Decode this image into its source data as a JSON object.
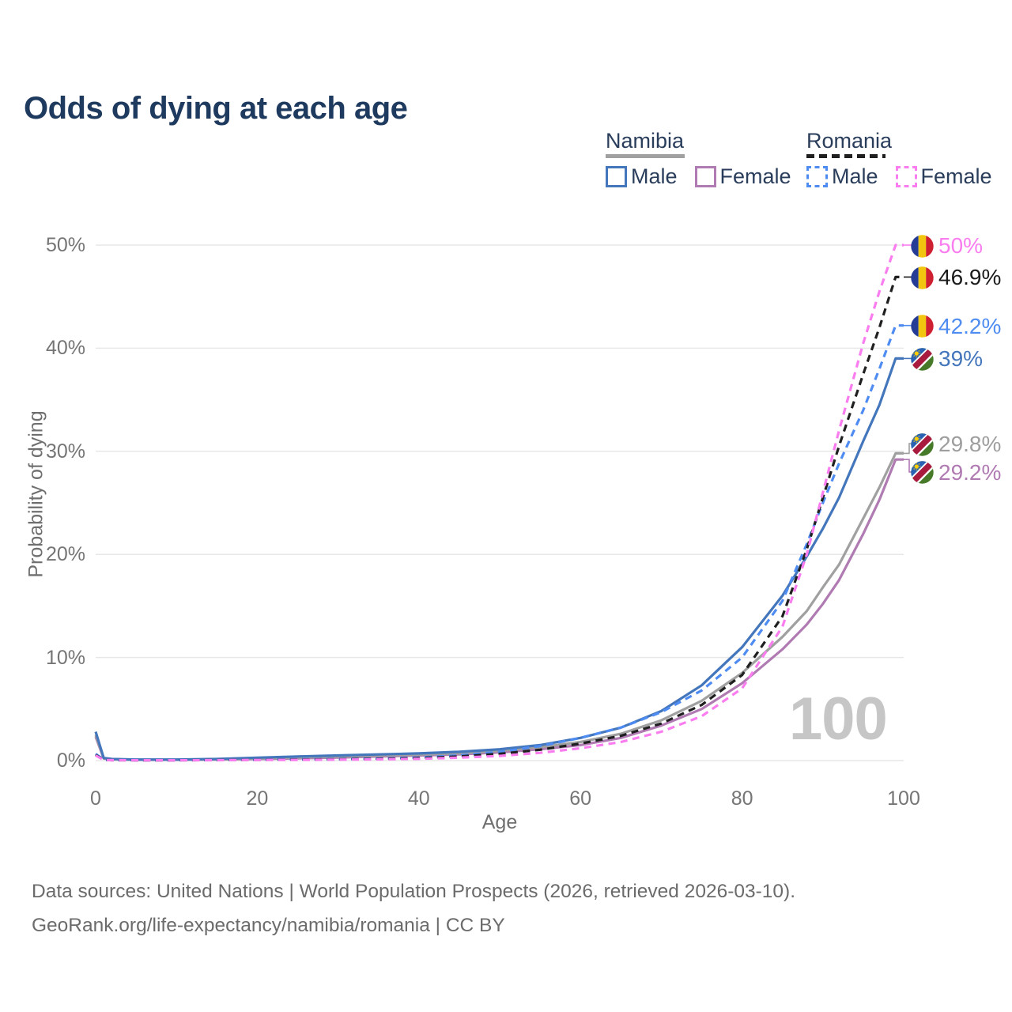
{
  "title": "Odds of dying at each age",
  "watermark": "100",
  "colors": {
    "background": "#FFFFFF",
    "title_text": "#1E3A5E",
    "legend_text": "#2A3E5C",
    "axis_text": "#757575",
    "footer_text": "#6B6B6B",
    "watermark_text": "#C6C6C6",
    "grid": "#E7E7E7"
  },
  "legend": {
    "groups": [
      {
        "country": "Namibia",
        "style": "solid",
        "underline_color": "#A0A0A0",
        "items": [
          {
            "label": "Male",
            "color": "#4476BB",
            "dashed": false
          },
          {
            "label": "Female",
            "color": "#B07AB2",
            "dashed": false
          }
        ]
      },
      {
        "country": "Romania",
        "style": "dashed",
        "underline_color": "#1F1F1F",
        "items": [
          {
            "label": "Male",
            "color": "#4E8CF2",
            "dashed": true
          },
          {
            "label": "Female",
            "color": "#FA7DF0",
            "dashed": true
          }
        ]
      }
    ]
  },
  "flags": {
    "ro": {
      "colors": [
        "#253C96",
        "#F2C50F",
        "#CE2031"
      ]
    },
    "na": {
      "blue": "#2B63B4",
      "red": "#A81B3E",
      "green": "#467A28",
      "white": "#FFFFFF",
      "sun": "#FFCE00"
    }
  },
  "chart_data": {
    "type": "line",
    "title": "Odds of dying at each age",
    "xlabel": "Age",
    "ylabel": "Probability of dying",
    "xlim": [
      0,
      100
    ],
    "ylim": [
      0,
      50
    ],
    "xticks": [
      0,
      20,
      40,
      60,
      80,
      100
    ],
    "yticks": [
      0,
      10,
      20,
      30,
      40,
      50
    ],
    "ytick_suffix": "%",
    "grid": true,
    "legend_position": "top-right",
    "series": [
      {
        "id": "namibia-female",
        "name": "Namibia Female",
        "country": "Namibia",
        "color": "#B07AB2",
        "dashed": false,
        "points": [
          [
            0,
            2.3
          ],
          [
            1,
            0.2
          ],
          [
            2,
            0.12
          ],
          [
            5,
            0.08
          ],
          [
            10,
            0.08
          ],
          [
            15,
            0.1
          ],
          [
            20,
            0.15
          ],
          [
            25,
            0.22
          ],
          [
            30,
            0.3
          ],
          [
            35,
            0.4
          ],
          [
            40,
            0.5
          ],
          [
            45,
            0.6
          ],
          [
            50,
            0.8
          ],
          [
            55,
            1.1
          ],
          [
            60,
            1.5
          ],
          [
            65,
            2.2
          ],
          [
            70,
            3.4
          ],
          [
            75,
            5.0
          ],
          [
            80,
            7.5
          ],
          [
            85,
            10.8
          ],
          [
            88,
            13.2
          ],
          [
            90,
            15.2
          ],
          [
            92,
            17.5
          ],
          [
            95,
            22.0
          ],
          [
            97,
            25.3
          ],
          [
            99,
            29.2
          ],
          [
            100,
            29.2
          ]
        ]
      },
      {
        "id": "namibia-total",
        "name": "Namibia (both sexes)",
        "country": "Namibia",
        "color": "#A0A0A0",
        "dashed": false,
        "points": [
          [
            0,
            2.5
          ],
          [
            1,
            0.22
          ],
          [
            2,
            0.13
          ],
          [
            5,
            0.09
          ],
          [
            10,
            0.09
          ],
          [
            15,
            0.12
          ],
          [
            20,
            0.2
          ],
          [
            25,
            0.3
          ],
          [
            30,
            0.4
          ],
          [
            35,
            0.5
          ],
          [
            40,
            0.58
          ],
          [
            45,
            0.7
          ],
          [
            50,
            0.95
          ],
          [
            55,
            1.3
          ],
          [
            60,
            1.8
          ],
          [
            65,
            2.6
          ],
          [
            70,
            3.9
          ],
          [
            75,
            5.8
          ],
          [
            80,
            8.5
          ],
          [
            85,
            12.0
          ],
          [
            88,
            14.5
          ],
          [
            90,
            16.8
          ],
          [
            92,
            19.0
          ],
          [
            95,
            23.5
          ],
          [
            97,
            26.5
          ],
          [
            99,
            29.8
          ],
          [
            100,
            29.8
          ]
        ]
      },
      {
        "id": "namibia-male",
        "name": "Namibia Male",
        "country": "Namibia",
        "color": "#4476BB",
        "dashed": false,
        "points": [
          [
            0,
            2.8
          ],
          [
            1,
            0.25
          ],
          [
            2,
            0.15
          ],
          [
            5,
            0.1
          ],
          [
            10,
            0.1
          ],
          [
            15,
            0.15
          ],
          [
            20,
            0.28
          ],
          [
            25,
            0.4
          ],
          [
            30,
            0.5
          ],
          [
            35,
            0.6
          ],
          [
            40,
            0.7
          ],
          [
            45,
            0.85
          ],
          [
            50,
            1.1
          ],
          [
            55,
            1.5
          ],
          [
            60,
            2.2
          ],
          [
            65,
            3.2
          ],
          [
            70,
            4.8
          ],
          [
            75,
            7.3
          ],
          [
            80,
            11.0
          ],
          [
            85,
            16.0
          ],
          [
            88,
            19.8
          ],
          [
            90,
            22.5
          ],
          [
            92,
            25.5
          ],
          [
            95,
            31.0
          ],
          [
            97,
            34.5
          ],
          [
            99,
            39.0
          ],
          [
            100,
            39.0
          ]
        ]
      },
      {
        "id": "romania-male",
        "name": "Romania Male",
        "country": "Romania",
        "color": "#4E8CF2",
        "dashed": true,
        "points": [
          [
            0,
            0.65
          ],
          [
            1,
            0.08
          ],
          [
            2,
            0.05
          ],
          [
            5,
            0.04
          ],
          [
            10,
            0.04
          ],
          [
            15,
            0.07
          ],
          [
            20,
            0.1
          ],
          [
            25,
            0.12
          ],
          [
            30,
            0.15
          ],
          [
            35,
            0.2
          ],
          [
            40,
            0.3
          ],
          [
            45,
            0.5
          ],
          [
            50,
            0.85
          ],
          [
            55,
            1.4
          ],
          [
            60,
            2.2
          ],
          [
            65,
            3.2
          ],
          [
            70,
            4.7
          ],
          [
            75,
            6.8
          ],
          [
            80,
            10.0
          ],
          [
            85,
            15.5
          ],
          [
            88,
            21.0
          ],
          [
            90,
            25.0
          ],
          [
            92,
            28.8
          ],
          [
            95,
            34.0
          ],
          [
            97,
            38.0
          ],
          [
            99,
            42.2
          ],
          [
            100,
            42.2
          ]
        ]
      },
      {
        "id": "romania-total",
        "name": "Romania (both sexes)",
        "country": "Romania",
        "color": "#1F1F1F",
        "dashed": true,
        "points": [
          [
            0,
            0.55
          ],
          [
            1,
            0.07
          ],
          [
            2,
            0.04
          ],
          [
            5,
            0.03
          ],
          [
            10,
            0.03
          ],
          [
            15,
            0.05
          ],
          [
            20,
            0.08
          ],
          [
            25,
            0.1
          ],
          [
            30,
            0.12
          ],
          [
            35,
            0.16
          ],
          [
            40,
            0.24
          ],
          [
            45,
            0.4
          ],
          [
            50,
            0.65
          ],
          [
            55,
            1.05
          ],
          [
            60,
            1.65
          ],
          [
            65,
            2.4
          ],
          [
            70,
            3.6
          ],
          [
            75,
            5.4
          ],
          [
            80,
            8.3
          ],
          [
            85,
            14.0
          ],
          [
            88,
            20.5
          ],
          [
            90,
            25.5
          ],
          [
            92,
            30.5
          ],
          [
            95,
            37.5
          ],
          [
            97,
            42.0
          ],
          [
            99,
            46.9
          ],
          [
            100,
            46.9
          ]
        ]
      },
      {
        "id": "romania-female",
        "name": "Romania Female",
        "country": "Romania",
        "color": "#FA7DF0",
        "dashed": true,
        "points": [
          [
            0,
            0.5
          ],
          [
            1,
            0.06
          ],
          [
            2,
            0.04
          ],
          [
            5,
            0.03
          ],
          [
            10,
            0.03
          ],
          [
            15,
            0.04
          ],
          [
            20,
            0.06
          ],
          [
            25,
            0.07
          ],
          [
            30,
            0.09
          ],
          [
            35,
            0.12
          ],
          [
            40,
            0.17
          ],
          [
            45,
            0.28
          ],
          [
            50,
            0.45
          ],
          [
            55,
            0.75
          ],
          [
            60,
            1.2
          ],
          [
            65,
            1.8
          ],
          [
            70,
            2.8
          ],
          [
            75,
            4.3
          ],
          [
            80,
            7.0
          ],
          [
            85,
            13.0
          ],
          [
            88,
            20.0
          ],
          [
            90,
            26.0
          ],
          [
            92,
            32.0
          ],
          [
            95,
            40.5
          ],
          [
            97,
            45.5
          ],
          [
            99,
            50.0
          ],
          [
            100,
            50.0
          ]
        ]
      }
    ],
    "end_labels": [
      {
        "id": "romania-female",
        "text": "50%",
        "pct": 50,
        "flag": "ro",
        "color": "#FA7DF0"
      },
      {
        "id": "romania-total",
        "text": "46.9%",
        "pct": 46.9,
        "flag": "ro",
        "color": "#1A1A1A"
      },
      {
        "id": "romania-male",
        "text": "42.2%",
        "pct": 42.2,
        "flag": "ro",
        "color": "#4E8CF2"
      },
      {
        "id": "namibia-male",
        "text": "39%",
        "pct": 39,
        "flag": "na",
        "color": "#4476BB"
      },
      {
        "id": "namibia-total",
        "text": "29.8%",
        "pct": 29.8,
        "label_pct": 30.75,
        "flag": "na",
        "color": "#9E9E9E"
      },
      {
        "id": "namibia-female",
        "text": "29.2%",
        "pct": 29.2,
        "label_pct": 28.0,
        "flag": "na",
        "color": "#B07AB2"
      }
    ]
  },
  "footer": {
    "line1": "Data sources: United Nations | World Population Prospects (2026, retrieved 2026-03-10).",
    "line2": "GeoRank.org/life-expectancy/namibia/romania | CC BY"
  }
}
